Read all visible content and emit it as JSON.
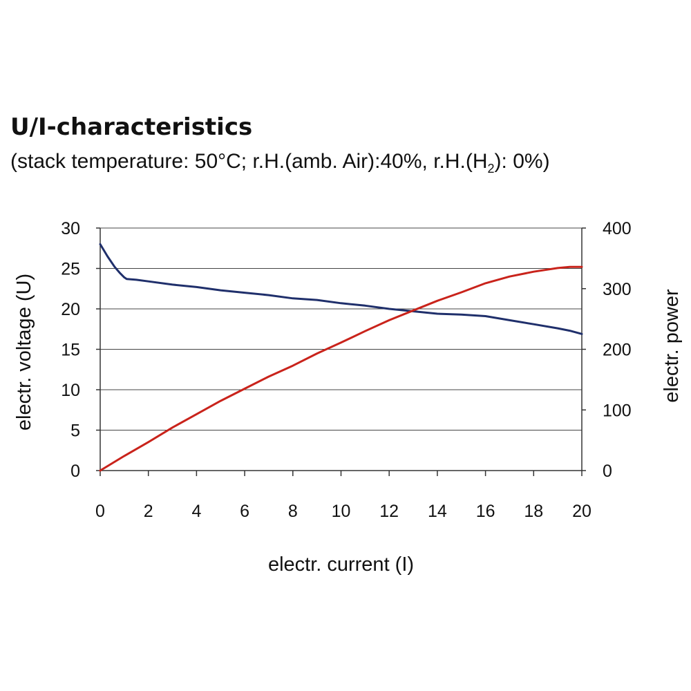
{
  "title": "U/I-characteristics",
  "subtitle": {
    "prefix": "(stack temperature: 50°C; r.H.(amb. Air):40%, r.H.(H",
    "sub": "2",
    "suffix": "): 0%)"
  },
  "colors": {
    "voltage": "#1f2f6b",
    "power": "#c9231b",
    "grid": "#444444",
    "axis": "#333333"
  },
  "chart_data": {
    "type": "line",
    "title": "U/I-characteristics",
    "xlabel": "electr. current (I)",
    "ylabel": "electr. voltage (U)",
    "y2label": "electr. power",
    "xlim": [
      0,
      20
    ],
    "ylim": [
      0,
      30
    ],
    "y2lim": [
      0,
      400
    ],
    "x_ticks": [
      0,
      2,
      4,
      6,
      8,
      10,
      12,
      14,
      16,
      18,
      20
    ],
    "y_ticks": [
      0,
      5,
      10,
      15,
      20,
      25,
      30
    ],
    "y2_ticks": [
      0,
      100,
      200,
      300,
      400
    ],
    "grid": true,
    "series": [
      {
        "name": "electr. voltage (U)",
        "axis": "left",
        "x": [
          0,
          0.3,
          0.6,
          0.8,
          1.0,
          1.1,
          1.5,
          2,
          3,
          4,
          5,
          6,
          7,
          8,
          9,
          10,
          11,
          12,
          13,
          14,
          15,
          16,
          17,
          18,
          19,
          19.5,
          20
        ],
        "values": [
          28.0,
          26.5,
          25.2,
          24.5,
          23.9,
          23.7,
          23.6,
          23.4,
          23.0,
          22.7,
          22.3,
          22.0,
          21.7,
          21.3,
          21.1,
          20.7,
          20.4,
          20.0,
          19.7,
          19.4,
          19.3,
          19.1,
          18.6,
          18.1,
          17.6,
          17.3,
          16.9
        ]
      },
      {
        "name": "electr. power",
        "axis": "right",
        "x": [
          0,
          1,
          2,
          3,
          4,
          5,
          6,
          7,
          8,
          9,
          10,
          11,
          12,
          13,
          14,
          15,
          16,
          17,
          18,
          19,
          19.5,
          20
        ],
        "values": [
          0,
          24,
          47,
          71,
          93,
          115,
          135,
          155,
          173,
          193,
          211,
          230,
          248,
          264,
          280,
          294,
          309,
          320,
          328,
          334,
          336,
          336
        ]
      }
    ]
  }
}
